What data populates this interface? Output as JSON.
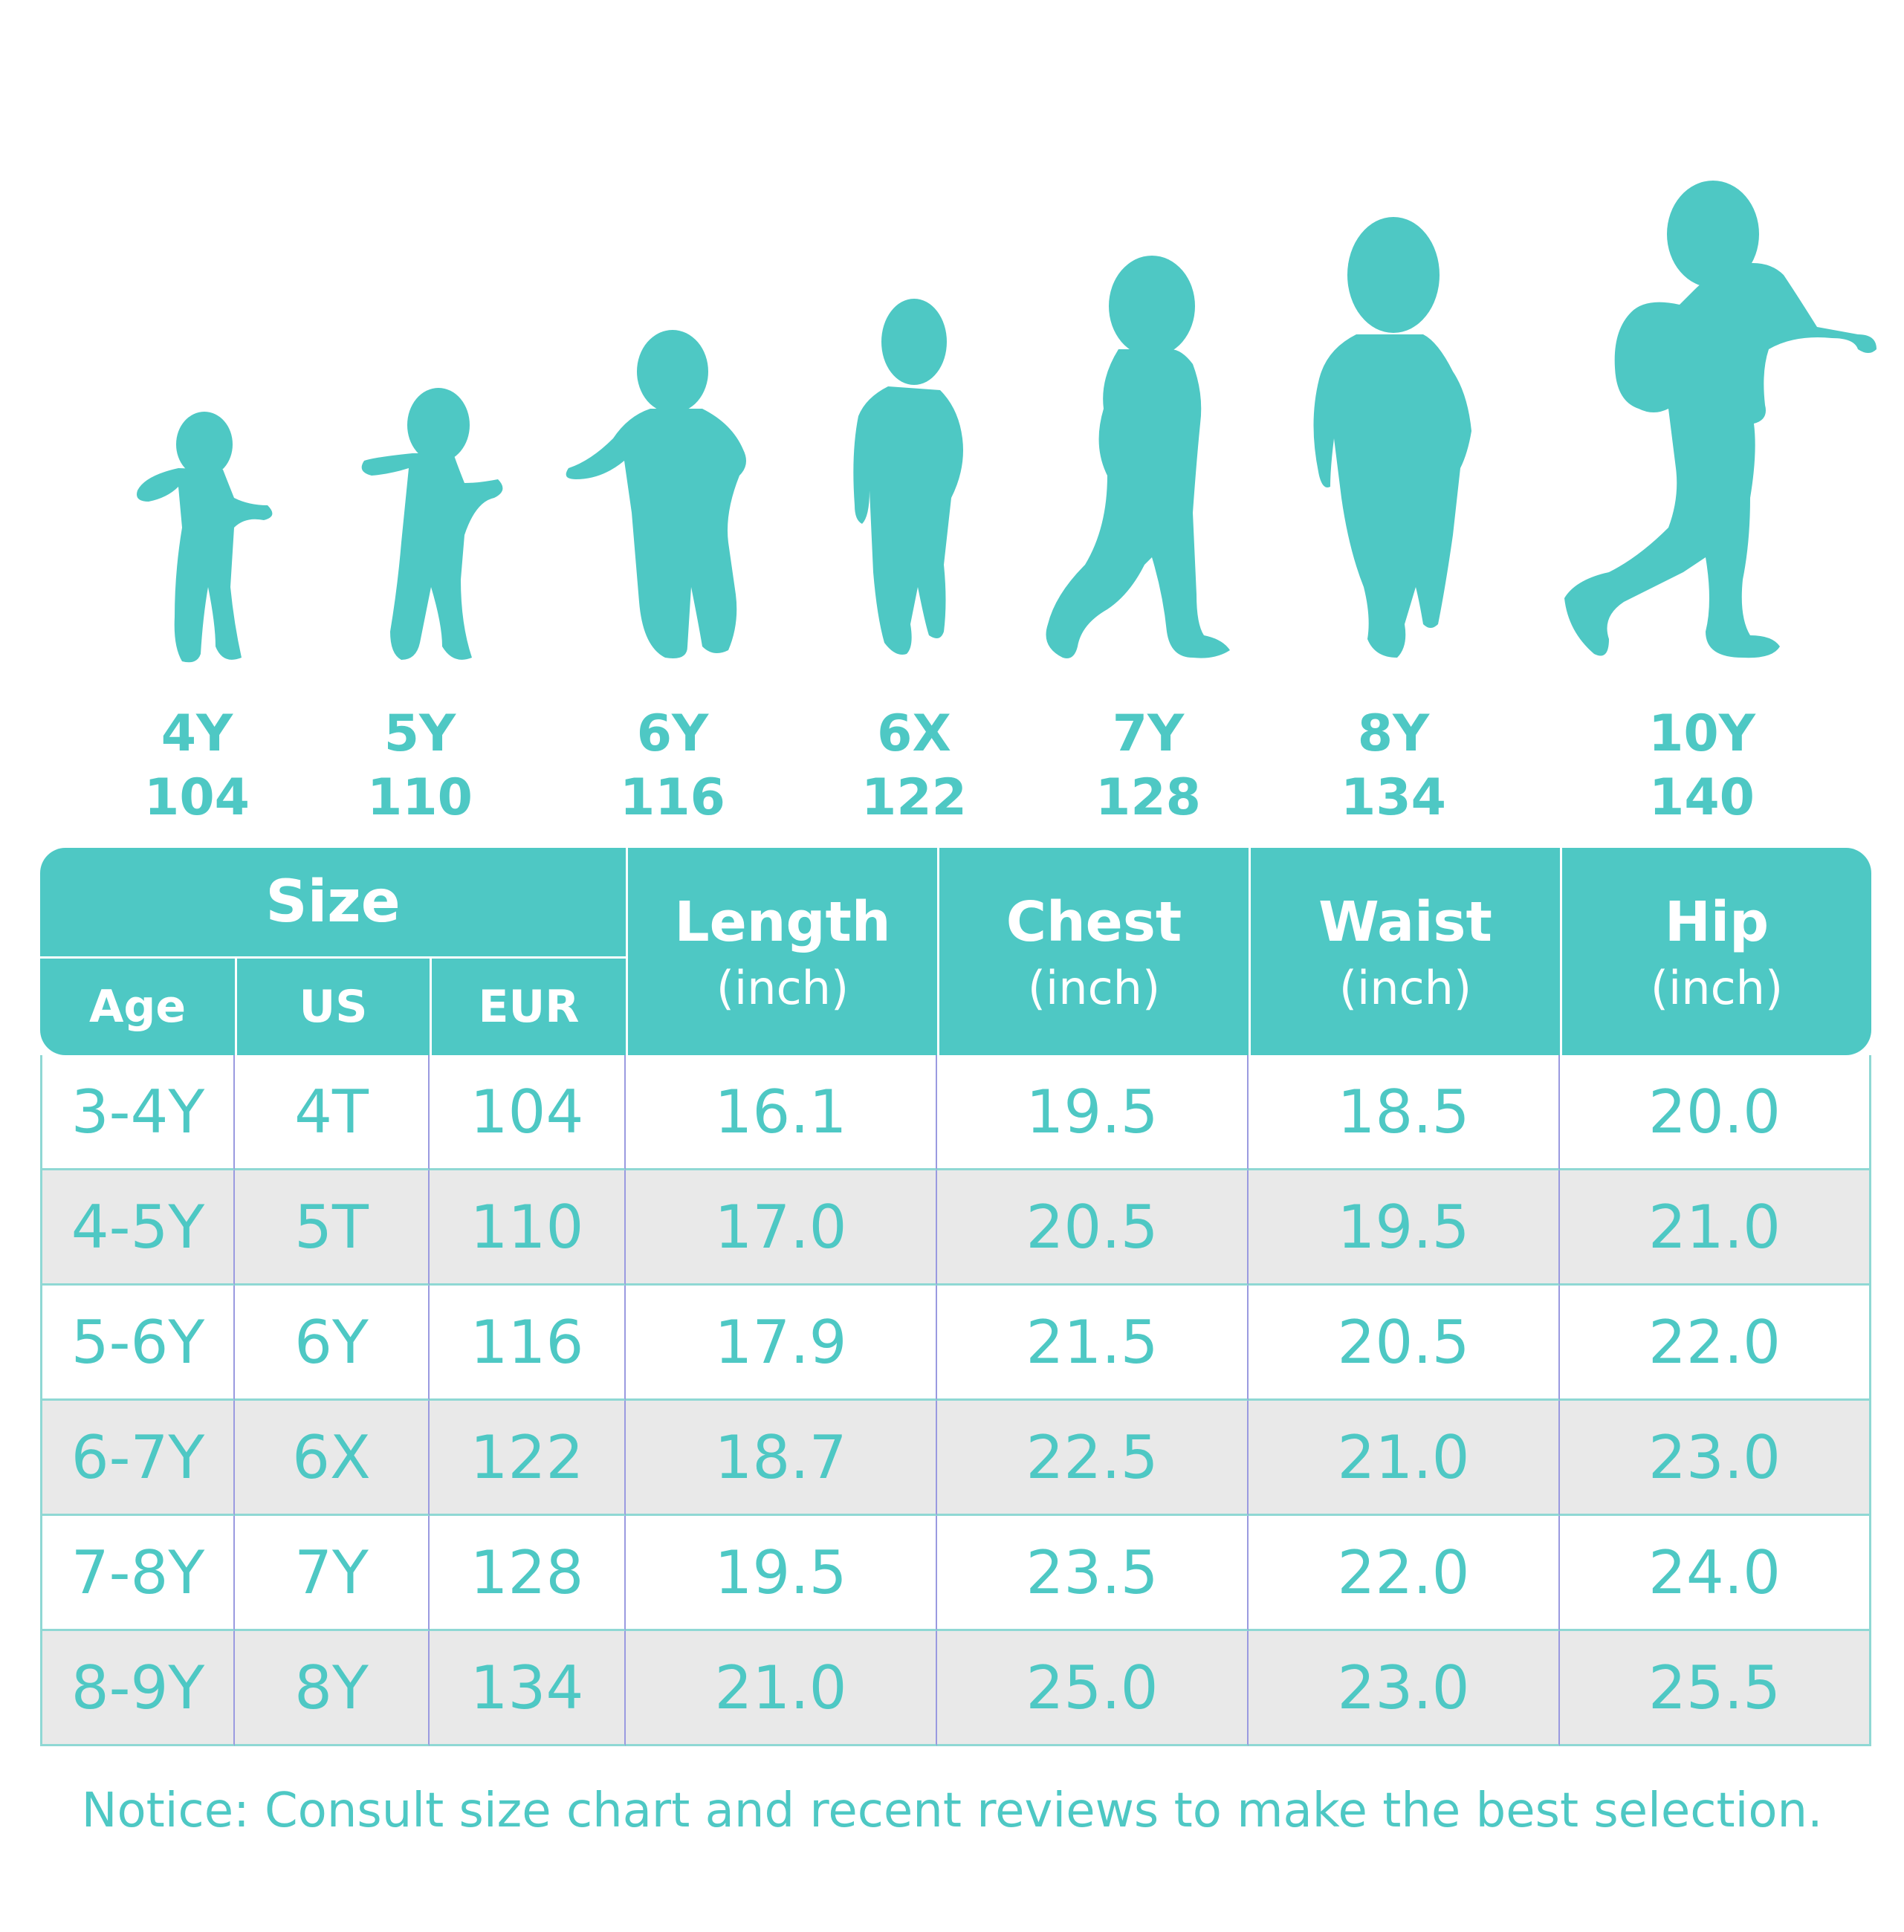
{
  "sizes": [
    {
      "label": "4Y",
      "eur": "104"
    },
    {
      "label": "5Y",
      "eur": "110"
    },
    {
      "label": "6Y",
      "eur": "116"
    },
    {
      "label": "6X",
      "eur": "122"
    },
    {
      "label": "7Y",
      "eur": "128"
    },
    {
      "label": "8Y",
      "eur": "134"
    },
    {
      "label": "10Y",
      "eur": "140"
    }
  ],
  "table": {
    "size_header": "Size",
    "sub_headers": {
      "age": "Age",
      "us": "US",
      "eur": "EUR"
    },
    "metrics": [
      {
        "name": "Length",
        "unit": "(inch)"
      },
      {
        "name": "Chest",
        "unit": "(inch)"
      },
      {
        "name": "Waist",
        "unit": "(inch)"
      },
      {
        "name": "Hip",
        "unit": "(inch)"
      }
    ],
    "rows": [
      {
        "age": "3-4Y",
        "us": "4T",
        "eur": "104",
        "length": "16.1",
        "chest": "19.5",
        "waist": "18.5",
        "hip": "20.0"
      },
      {
        "age": "4-5Y",
        "us": "5T",
        "eur": "110",
        "length": "17.0",
        "chest": "20.5",
        "waist": "19.5",
        "hip": "21.0"
      },
      {
        "age": "5-6Y",
        "us": "6Y",
        "eur": "116",
        "length": "17.9",
        "chest": "21.5",
        "waist": "20.5",
        "hip": "22.0"
      },
      {
        "age": "6-7Y",
        "us": "6X",
        "eur": "122",
        "length": "18.7",
        "chest": "22.5",
        "waist": "21.0",
        "hip": "23.0"
      },
      {
        "age": "7-8Y",
        "us": "7Y",
        "eur": "128",
        "length": "19.5",
        "chest": "23.5",
        "waist": "22.0",
        "hip": "24.0"
      },
      {
        "age": "8-9Y",
        "us": "8Y",
        "eur": "134",
        "length": "21.0",
        "chest": "25.0",
        "waist": "23.0",
        "hip": "25.5"
      }
    ]
  },
  "notice": "Notice: Consult size chart and recent reviews to make the best selection.",
  "colors": {
    "accent": "#4ec8c4",
    "row_alt": "#e9e9e9"
  }
}
